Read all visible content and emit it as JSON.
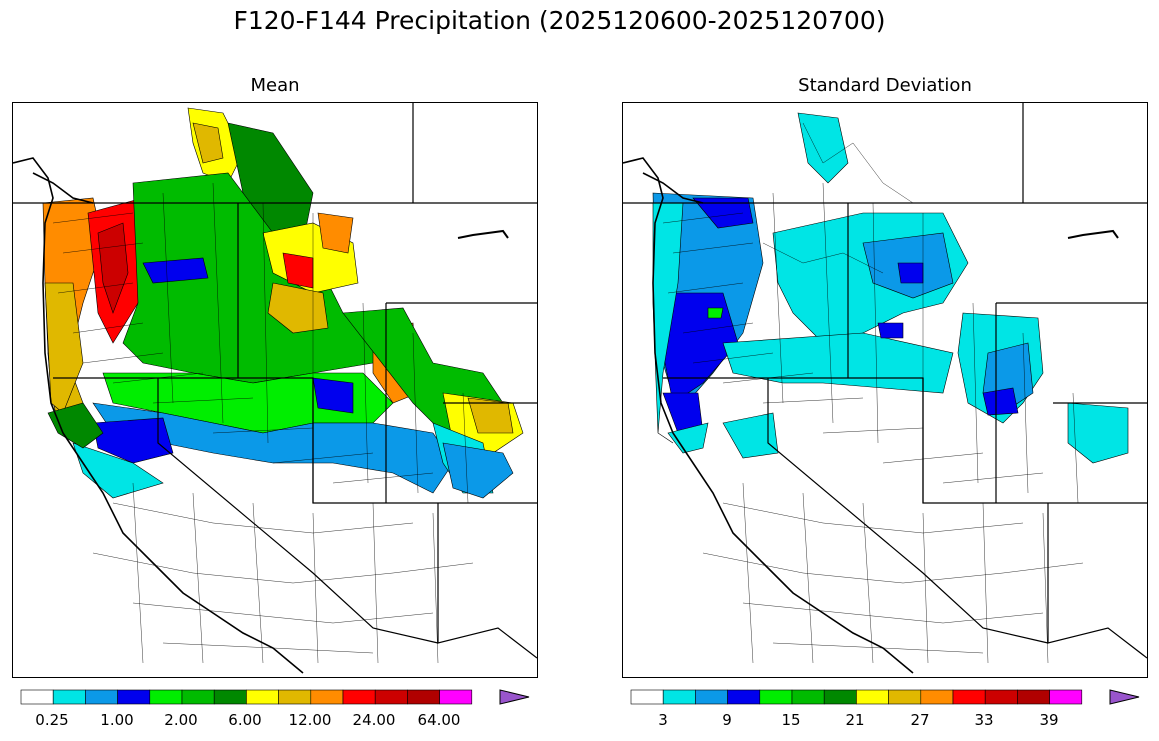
{
  "figure": {
    "title": "F120-F144 Precipitation (2025120600-2025120700)"
  },
  "panels": [
    {
      "id": "mean",
      "title": "Mean",
      "colorbar": {
        "colors": [
          "#ffffff",
          "#00e5e5",
          "#0b99e8",
          "#0000ee",
          "#00ee00",
          "#00bb00",
          "#008800",
          "#ffff00",
          "#e0b800",
          "#ff8c00",
          "#ff0000",
          "#cc0000",
          "#b00000",
          "#ff00ff",
          "#9955cc"
        ],
        "labels": [
          "0.25",
          "1.00",
          "2.00",
          "6.00",
          "12.00",
          "24.00",
          "64.00"
        ],
        "extend": "max"
      }
    },
    {
      "id": "stddev",
      "title": "Standard Deviation",
      "colorbar": {
        "colors": [
          "#ffffff",
          "#00e5e5",
          "#0b99e8",
          "#0000ee",
          "#00ee00",
          "#00bb00",
          "#008800",
          "#ffff00",
          "#e0b800",
          "#ff8c00",
          "#ff0000",
          "#cc0000",
          "#b00000",
          "#ff00ff",
          "#9955cc"
        ],
        "labels": [
          "3",
          "9",
          "15",
          "21",
          "27",
          "33",
          "39"
        ],
        "extend": "max"
      }
    }
  ]
}
